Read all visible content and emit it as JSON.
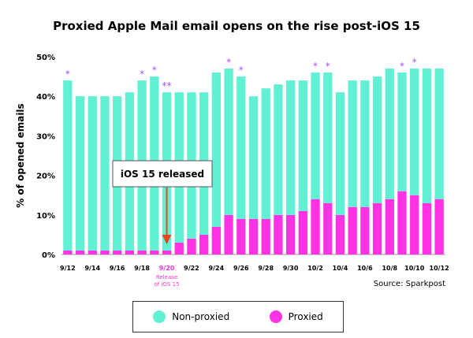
{
  "title": "Proxied Apple Mail email opens on the rise post-iOS 15",
  "source": "Source: Sparkpost",
  "annotation": {
    "callout": "iOS 15 released",
    "release_note": [
      "9/20",
      "Release",
      "of iOS 15"
    ]
  },
  "legend": [
    {
      "label": "Non-proxied",
      "color": "#62f0d4"
    },
    {
      "label": "Proxied",
      "color": "#ff33e4"
    }
  ],
  "colors": {
    "non_proxied": "#62f0d4",
    "proxied": "#ff33e4",
    "star": "#a64dff",
    "arrow": "#e8461e",
    "release_label": "#ff33e4"
  },
  "chart_data": {
    "type": "bar",
    "stacked": true,
    "title": "Proxied Apple Mail email opens on the rise post-iOS 15",
    "xlabel": "",
    "ylabel": "% of opened emails",
    "ylim": [
      0,
      50
    ],
    "yticks": [
      "0%",
      "10%",
      "20%",
      "30%",
      "40%",
      "50%"
    ],
    "categories": [
      "9/12",
      "9/13",
      "9/14",
      "9/15",
      "9/16",
      "9/17",
      "9/18",
      "9/19",
      "9/20",
      "9/21",
      "9/22",
      "9/23",
      "9/24",
      "9/25",
      "9/26",
      "9/27",
      "9/28",
      "9/29",
      "9/30",
      "10/1",
      "10/2",
      "10/3",
      "10/4",
      "10/5",
      "10/6",
      "10/7",
      "10/8",
      "10/9",
      "10/10",
      "10/11",
      "10/12"
    ],
    "xtick_labels": [
      "9/12",
      "9/14",
      "9/16",
      "9/18",
      "9/20",
      "9/22",
      "9/24",
      "9/26",
      "9/28",
      "9/30",
      "10/2",
      "10/4",
      "10/6",
      "10/8",
      "10/10",
      "10/12"
    ],
    "series": [
      {
        "name": "Proxied",
        "values": [
          1,
          1,
          1,
          1,
          1,
          1,
          1,
          1,
          1,
          3,
          4,
          5,
          7,
          10,
          9,
          9,
          9,
          10,
          10,
          11,
          14,
          13,
          10,
          12,
          12,
          13,
          14,
          16,
          15,
          13,
          14
        ]
      },
      {
        "name": "Non-proxied",
        "values": [
          43,
          39,
          39,
          39,
          39,
          40,
          43,
          44,
          40,
          38,
          37,
          36,
          39,
          37,
          36,
          31,
          33,
          33,
          34,
          33,
          32,
          33,
          31,
          32,
          32,
          32,
          33,
          30,
          32,
          34,
          33
        ]
      }
    ],
    "stars": [
      "*",
      "",
      "",
      "",
      "",
      "",
      "*",
      "*",
      "**",
      "",
      "",
      "",
      "",
      "*",
      "*",
      "",
      "",
      "",
      "",
      "",
      "*",
      "*",
      "",
      "",
      "",
      "",
      "",
      "*",
      "*",
      "",
      ""
    ],
    "legend_position": "bottom-center",
    "grid": false
  }
}
